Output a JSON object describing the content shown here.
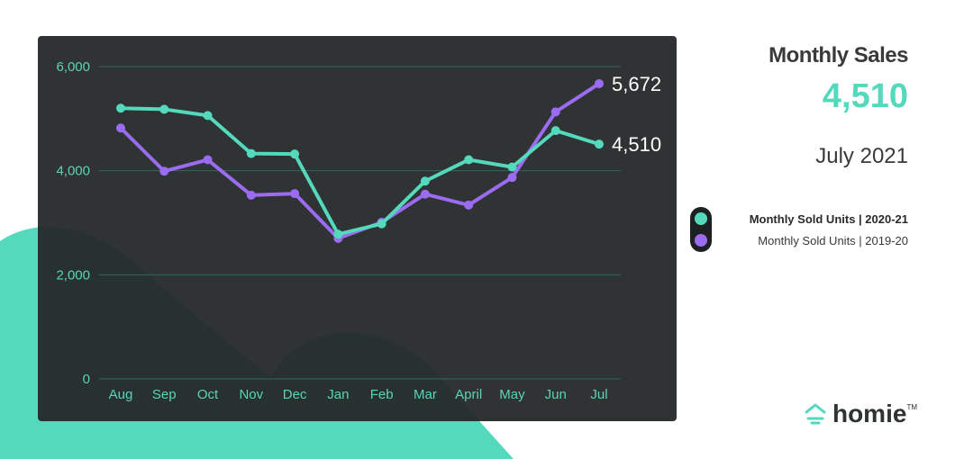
{
  "summary": {
    "title": "Monthly Sales",
    "value": "4,510",
    "period": "July 2021"
  },
  "colors": {
    "series_2020_21": "#55d9bd",
    "series_2019_20": "#9b6cf2",
    "panel": "#242828",
    "blob": "#55d9bd"
  },
  "legend": {
    "items": [
      {
        "label": "Monthly Sold Units  |  2020-21",
        "color": "#55d9bd",
        "bold": true
      },
      {
        "label": "Monthly Sold Units  |  2019-20",
        "color": "#9b6cf2",
        "bold": false
      }
    ]
  },
  "logo": {
    "text": "homie",
    "tm": "TM",
    "icon": "house-lamp-icon"
  },
  "chart_data": {
    "type": "line",
    "categories": [
      "Aug",
      "Sep",
      "Oct",
      "Nov",
      "Dec",
      "Jan",
      "Feb",
      "Mar",
      "April",
      "May",
      "Jun",
      "Jul"
    ],
    "ylim": [
      0,
      6000
    ],
    "yticks": [
      0,
      2000,
      4000,
      6000
    ],
    "ytick_labels": [
      "0",
      "2,000",
      "4,000",
      "6,000"
    ],
    "grid": true,
    "series": [
      {
        "name": "Monthly Sold Units  |  2020-21",
        "color": "#55d9bd",
        "values": [
          5200,
          5180,
          5060,
          4330,
          4320,
          2780,
          2980,
          3800,
          4210,
          4070,
          4770,
          4510
        ],
        "end_label": "4,510"
      },
      {
        "name": "Monthly Sold Units  |  2019-20",
        "color": "#9b6cf2",
        "values": [
          4820,
          3990,
          4210,
          3530,
          3560,
          2700,
          3010,
          3550,
          3340,
          3870,
          5130,
          5672
        ],
        "end_label": "5,672"
      }
    ],
    "xlabel": "",
    "ylabel": ""
  }
}
